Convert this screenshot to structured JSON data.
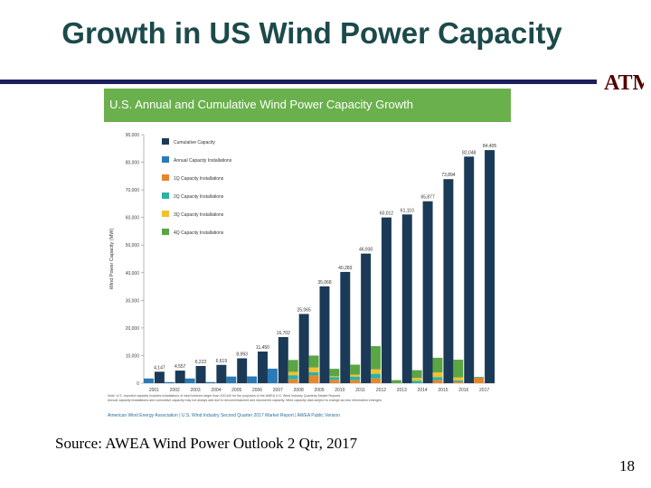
{
  "slide": {
    "title": "Growth in US Wind Power Capacity",
    "source": "Source: AWEA Wind Power Outlook 2 Qtr, 2017",
    "page_number": "18",
    "logo_text": "ATM"
  },
  "colors": {
    "title": "#1c4a4a",
    "rule": "#1a1f5e",
    "header": "#6ab04c",
    "cumulative": "#1b3a57",
    "annual": "#2a7ab5",
    "q1": "#e8862a",
    "q2": "#2bb3a6",
    "q3": "#f2c12e",
    "q4": "#5aa544",
    "logo": "#500000"
  },
  "chart_data": {
    "type": "bar",
    "title": "U.S. Annual and Cumulative Wind Power Capacity Growth",
    "ylabel": "Wind Power Capacity (MW)",
    "xlabel": "",
    "ylim": [
      0,
      90000
    ],
    "yticks": [
      0,
      10000,
      20000,
      30000,
      40000,
      50000,
      60000,
      70000,
      80000,
      90000
    ],
    "ytick_labels": [
      "0",
      "10,000",
      "20,000",
      "30,000",
      "40,000",
      "50,000",
      "60,000",
      "70,000",
      "80,000",
      "90,000"
    ],
    "categories": [
      "2001",
      "2002",
      "2003",
      "2004",
      "2005",
      "2006",
      "2007",
      "2008",
      "2009",
      "2010",
      "2011",
      "2012",
      "2013",
      "2014",
      "2015",
      "2016",
      "2017"
    ],
    "series": [
      {
        "name": "Cumulative Capacity",
        "values": [
          4147,
          4557,
          6222,
          6619,
          8993,
          11450,
          16702,
          25065,
          35068,
          40283,
          46930,
          60012,
          61110,
          65877,
          73894,
          82048,
          84405
        ]
      },
      {
        "name": "Annual Capacity Installations",
        "values": [
          1700,
          400,
          1700,
          400,
          2400,
          2450,
          5250,
          0,
          0,
          0,
          0,
          0,
          0,
          0,
          0,
          0,
          0
        ]
      },
      {
        "name": "1Q Capacity Installations",
        "values": [
          0,
          0,
          0,
          0,
          0,
          0,
          0,
          1400,
          2800,
          1200,
          1100,
          1700,
          0,
          0,
          1100,
          500,
          2000
        ]
      },
      {
        "name": "2Q Capacity Installations",
        "values": [
          0,
          0,
          0,
          0,
          0,
          0,
          0,
          1500,
          1200,
          1000,
          1300,
          1700,
          0,
          900,
          1100,
          500,
          300
        ]
      },
      {
        "name": "3Q Capacity Installations",
        "values": [
          0,
          0,
          0,
          0,
          0,
          0,
          0,
          1200,
          1700,
          300,
          700,
          1600,
          0,
          1000,
          1700,
          1100,
          0
        ]
      },
      {
        "name": "4Q Capacity Installations",
        "values": [
          0,
          0,
          0,
          0,
          0,
          0,
          0,
          4300,
          4300,
          2700,
          3600,
          8400,
          1100,
          2800,
          5300,
          6400,
          0
        ]
      }
    ],
    "data_labels": [
      "4,147",
      "4,557",
      "6,222",
      "6,619",
      "8,993",
      "11,450",
      "16,702",
      "25,065",
      "35,068",
      "40,283",
      "46,930",
      "60,012",
      "61,110",
      "65,877",
      "73,894",
      "82,048",
      "84,405"
    ],
    "legend_position": "top-left",
    "note": "Note: U.S. reported capacity includes installations of wind turbines larger than 100-kW for the purposes of the AWEA U.S. Wind Industry Quarterly Market Reports. Annual capacity installations and cumulative capacity may not always add due to decommissioned and repowered capacity. Wind capacity data subject to change as new information emerges.",
    "footer_source": "American Wind Energy Association | U.S. Wind Industry Second Quarter 2017 Market Report | AWEA Public Version"
  }
}
